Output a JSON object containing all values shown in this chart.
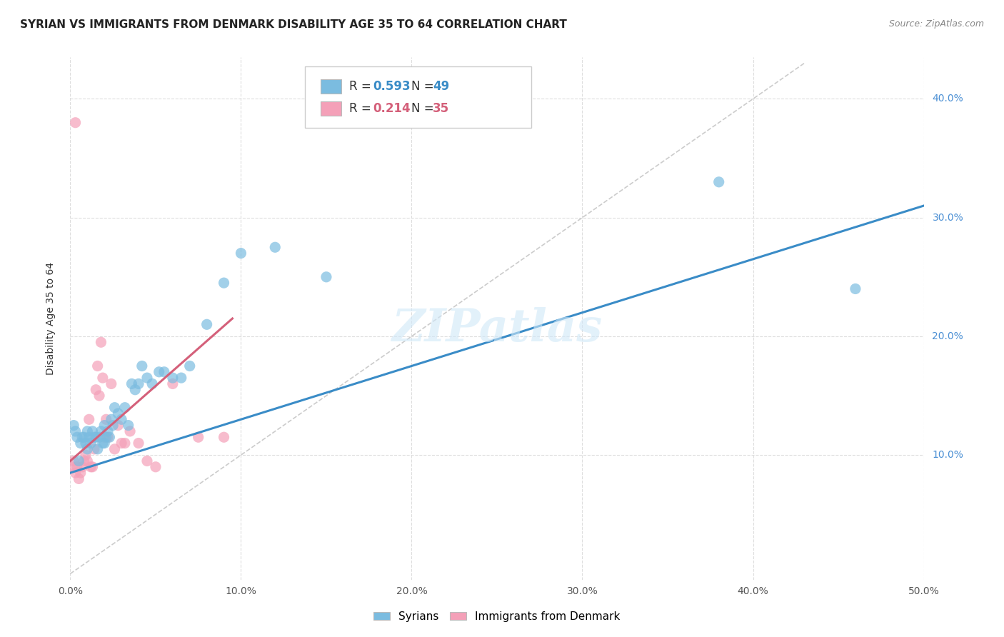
{
  "title": "SYRIAN VS IMMIGRANTS FROM DENMARK DISABILITY AGE 35 TO 64 CORRELATION CHART",
  "source": "Source: ZipAtlas.com",
  "ylabel": "Disability Age 35 to 64",
  "xlim": [
    0.0,
    0.5
  ],
  "ylim": [
    -0.005,
    0.435
  ],
  "xticks": [
    0.0,
    0.1,
    0.2,
    0.3,
    0.4,
    0.5
  ],
  "yticks": [
    0.1,
    0.2,
    0.3,
    0.4
  ],
  "xtick_labels": [
    "0.0%",
    "10.0%",
    "20.0%",
    "30.0%",
    "40.0%",
    "50.0%"
  ],
  "ytick_labels_right": [
    "10.0%",
    "20.0%",
    "30.0%",
    "40.0%"
  ],
  "blue_R": 0.593,
  "blue_N": 49,
  "pink_R": 0.214,
  "pink_N": 35,
  "blue_color": "#7bbce0",
  "pink_color": "#f4a0b8",
  "blue_line_color": "#3a8cc7",
  "pink_line_color": "#d4607a",
  "diagonal_color": "#cccccc",
  "background_color": "#ffffff",
  "grid_color": "#dddddd",
  "blue_scatter_x": [
    0.002,
    0.003,
    0.004,
    0.005,
    0.006,
    0.007,
    0.008,
    0.009,
    0.01,
    0.01,
    0.011,
    0.012,
    0.013,
    0.014,
    0.015,
    0.016,
    0.017,
    0.018,
    0.019,
    0.02,
    0.02,
    0.021,
    0.022,
    0.023,
    0.024,
    0.025,
    0.026,
    0.028,
    0.03,
    0.032,
    0.034,
    0.036,
    0.038,
    0.04,
    0.042,
    0.045,
    0.048,
    0.052,
    0.055,
    0.06,
    0.065,
    0.07,
    0.08,
    0.09,
    0.1,
    0.12,
    0.15,
    0.38,
    0.46
  ],
  "blue_scatter_y": [
    0.125,
    0.12,
    0.115,
    0.095,
    0.11,
    0.115,
    0.115,
    0.11,
    0.105,
    0.12,
    0.115,
    0.11,
    0.12,
    0.115,
    0.115,
    0.105,
    0.115,
    0.12,
    0.11,
    0.11,
    0.125,
    0.115,
    0.12,
    0.115,
    0.13,
    0.125,
    0.14,
    0.135,
    0.13,
    0.14,
    0.125,
    0.16,
    0.155,
    0.16,
    0.175,
    0.165,
    0.16,
    0.17,
    0.17,
    0.165,
    0.165,
    0.175,
    0.21,
    0.245,
    0.27,
    0.275,
    0.25,
    0.33,
    0.24
  ],
  "pink_scatter_x": [
    0.001,
    0.002,
    0.003,
    0.004,
    0.005,
    0.006,
    0.007,
    0.008,
    0.009,
    0.01,
    0.011,
    0.012,
    0.013,
    0.014,
    0.015,
    0.016,
    0.017,
    0.018,
    0.019,
    0.02,
    0.021,
    0.022,
    0.024,
    0.026,
    0.028,
    0.03,
    0.032,
    0.035,
    0.04,
    0.045,
    0.05,
    0.06,
    0.075,
    0.09,
    0.003
  ],
  "pink_scatter_y": [
    0.09,
    0.095,
    0.085,
    0.09,
    0.08,
    0.085,
    0.09,
    0.095,
    0.1,
    0.095,
    0.13,
    0.09,
    0.09,
    0.105,
    0.155,
    0.175,
    0.15,
    0.195,
    0.165,
    0.115,
    0.13,
    0.115,
    0.16,
    0.105,
    0.125,
    0.11,
    0.11,
    0.12,
    0.11,
    0.095,
    0.09,
    0.16,
    0.115,
    0.115,
    0.38
  ],
  "blue_line_x0": 0.0,
  "blue_line_y0": 0.085,
  "blue_line_x1": 0.5,
  "blue_line_y1": 0.31,
  "pink_line_x0": 0.0,
  "pink_line_y0": 0.095,
  "pink_line_x1": 0.095,
  "pink_line_y1": 0.215,
  "watermark": "ZIPatlas",
  "title_fontsize": 11,
  "label_fontsize": 10,
  "tick_fontsize": 10,
  "source_fontsize": 9
}
